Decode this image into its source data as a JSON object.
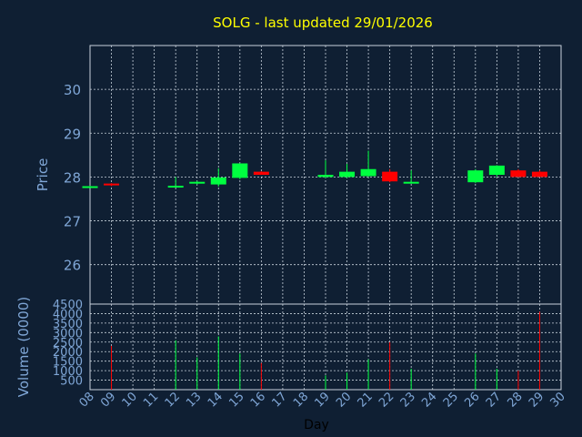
{
  "chart_data": {
    "type": "candlestick",
    "title": "SOLG - last updated 29/01/2026",
    "xlabel": "Day",
    "price_panel": {
      "ylabel": "Price",
      "ylim": [
        25.1,
        31.0
      ],
      "yticks": [
        26,
        27,
        28,
        29,
        30
      ]
    },
    "volume_panel": {
      "ylabel": "Volume (0000)",
      "ylim": [
        0,
        4500
      ],
      "yticks": [
        500,
        1000,
        1500,
        2000,
        2500,
        3000,
        3500,
        4000,
        4500
      ]
    },
    "x_ticks": [
      "08",
      "09",
      "10",
      "11",
      "12",
      "13",
      "14",
      "15",
      "16",
      "17",
      "18",
      "19",
      "20",
      "21",
      "22",
      "23",
      "24",
      "25",
      "26",
      "27",
      "28",
      "29",
      "30"
    ],
    "colors": {
      "background": "#0f1f33",
      "grid": "#c8d2dc",
      "up": "#00ff40",
      "down": "#ff0000",
      "title": "#ffff00",
      "text": "#7fa6d6"
    },
    "candles": [
      {
        "day": "08",
        "open": 27.78,
        "high": 27.8,
        "low": 27.77,
        "close": 27.79,
        "volume": 0
      },
      {
        "day": "09",
        "open": 27.85,
        "high": 27.86,
        "low": 27.79,
        "close": 27.81,
        "volume": 2300
      },
      {
        "day": "12",
        "open": 27.78,
        "high": 28.0,
        "low": 27.77,
        "close": 27.8,
        "volume": 2600
      },
      {
        "day": "13",
        "open": 27.86,
        "high": 27.91,
        "low": 27.83,
        "close": 27.89,
        "volume": 1700
      },
      {
        "day": "14",
        "open": 27.83,
        "high": 28.2,
        "low": 27.78,
        "close": 27.99,
        "volume": 2800
      },
      {
        "day": "15",
        "open": 27.98,
        "high": 28.31,
        "low": 27.95,
        "close": 28.31,
        "volume": 1900
      },
      {
        "day": "16",
        "open": 28.12,
        "high": 28.13,
        "low": 28.05,
        "close": 28.05,
        "volume": 1400
      },
      {
        "day": "19",
        "open": 28.0,
        "high": 28.38,
        "low": 27.98,
        "close": 28.05,
        "volume": 750
      },
      {
        "day": "20",
        "open": 28.0,
        "high": 28.3,
        "low": 27.98,
        "close": 28.12,
        "volume": 900
      },
      {
        "day": "21",
        "open": 28.02,
        "high": 28.6,
        "low": 28.0,
        "close": 28.18,
        "volume": 1600
      },
      {
        "day": "22",
        "open": 28.12,
        "high": 28.18,
        "low": 27.88,
        "close": 27.9,
        "volume": 2500
      },
      {
        "day": "23",
        "open": 27.86,
        "high": 28.15,
        "low": 27.85,
        "close": 27.89,
        "volume": 1100
      },
      {
        "day": "26",
        "open": 27.88,
        "high": 28.18,
        "low": 27.86,
        "close": 28.15,
        "volume": 1900
      },
      {
        "day": "27",
        "open": 28.05,
        "high": 28.27,
        "low": 28.0,
        "close": 28.26,
        "volume": 1100
      },
      {
        "day": "28",
        "open": 28.15,
        "high": 28.18,
        "low": 28.0,
        "close": 28.0,
        "volume": 1000
      },
      {
        "day": "29",
        "open": 28.12,
        "high": 28.15,
        "low": 28.0,
        "close": 28.0,
        "volume": 4100
      }
    ]
  }
}
